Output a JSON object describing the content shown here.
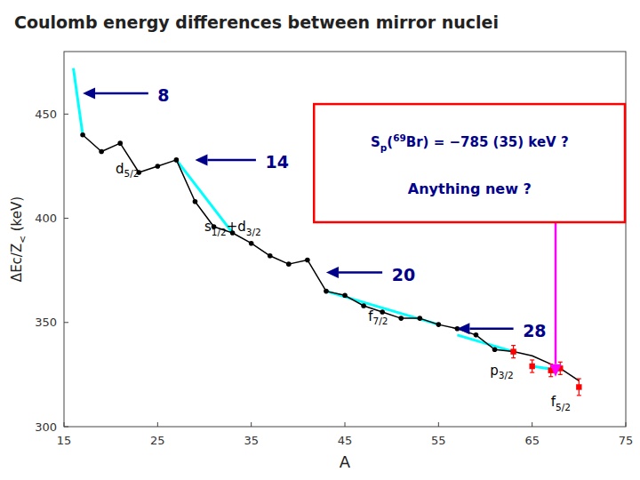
{
  "chart_data": {
    "type": "line",
    "title": "Coulomb energy differences between mirror nuclei",
    "xlabel": "A",
    "ylabel": "ΔEc/Z< (keV)",
    "xlim": [
      15,
      75
    ],
    "ylim": [
      300,
      480
    ],
    "xticks": [
      15,
      25,
      35,
      45,
      55,
      65,
      75
    ],
    "yticks": [
      300,
      350,
      400,
      450
    ],
    "grid": false,
    "series": [
      {
        "type": "line",
        "color": "cyan",
        "x": [
          16,
          17
        ],
        "values": [
          472,
          440
        ]
      },
      {
        "type": "line",
        "color": "cyan",
        "x": [
          27,
          33
        ],
        "values": [
          428,
          393
        ]
      },
      {
        "type": "line",
        "color": "cyan",
        "x": [
          43,
          55
        ],
        "values": [
          365,
          349
        ]
      },
      {
        "type": "line",
        "color": "cyan",
        "x": [
          57,
          63
        ],
        "values": [
          344,
          336
        ]
      },
      {
        "type": "line",
        "color": "cyan",
        "x": [
          65,
          68
        ],
        "values": [
          329,
          327
        ]
      },
      {
        "type": "line",
        "color": "black",
        "marker": "circle",
        "x": [
          17,
          19,
          21,
          23,
          25,
          27,
          29,
          31,
          33,
          35,
          37,
          39,
          41,
          43,
          45,
          47,
          49,
          51,
          53,
          55,
          57,
          59,
          61,
          63
        ],
        "values": [
          440,
          432,
          436,
          422,
          425,
          428,
          408,
          396,
          393,
          388,
          382,
          378,
          380,
          365,
          363,
          358,
          355,
          352,
          352,
          349,
          347,
          344,
          337,
          336
        ]
      },
      {
        "type": "line",
        "color": "black",
        "x": [
          63,
          65,
          67,
          68,
          70
        ],
        "values": [
          336,
          334,
          330,
          328,
          322
        ]
      },
      {
        "type": "scatter",
        "color": "red",
        "marker": "square",
        "x": [
          63,
          65,
          67,
          68,
          70
        ],
        "values": [
          336,
          329,
          327,
          328,
          319
        ],
        "errors": [
          3,
          3,
          3,
          3,
          4
        ]
      }
    ],
    "arrows": [
      {
        "x": [
          24,
          17
        ],
        "y": [
          460,
          460
        ],
        "color": "#00008B"
      },
      {
        "x": [
          35.5,
          29
        ],
        "y": [
          428,
          428
        ],
        "color": "#00008B"
      },
      {
        "x": [
          49,
          43
        ],
        "y": [
          374,
          374
        ],
        "color": "#00008B"
      },
      {
        "x": [
          63,
          57
        ],
        "y": [
          347,
          347
        ],
        "color": "#00008B"
      },
      {
        "x": [
          67.5,
          67.5
        ],
        "y": [
          415,
          324
        ],
        "color": "magenta"
      }
    ],
    "annotations": [
      {
        "text": "8",
        "x": 25,
        "y": 459,
        "color": "#00008B"
      },
      {
        "text": "14",
        "x": 36.5,
        "y": 427,
        "color": "#00008B"
      },
      {
        "text": "20",
        "x": 50,
        "y": 373,
        "color": "#00008B"
      },
      {
        "text": "28",
        "x": 64,
        "y": 346,
        "color": "#00008B"
      },
      {
        "text": "d5/2",
        "x": 20.5,
        "y": 424,
        "color": "black"
      },
      {
        "text": "s1/2+d3/2",
        "x": 30,
        "y": 396,
        "color": "black"
      },
      {
        "text": "f7/2",
        "x": 47.5,
        "y": 353,
        "color": "black"
      },
      {
        "text": "p3/2",
        "x": 60.5,
        "y": 327,
        "color": "black"
      },
      {
        "text": "f5/2",
        "x": 67,
        "y": 312,
        "color": "black"
      }
    ],
    "box": {
      "color": "red",
      "texts": [
        {
          "text": "Sp(69Br) = −785 (35) keV ?",
          "color": "#00008B"
        },
        {
          "text": "Anything new ?",
          "color": "#00008B"
        }
      ]
    }
  }
}
